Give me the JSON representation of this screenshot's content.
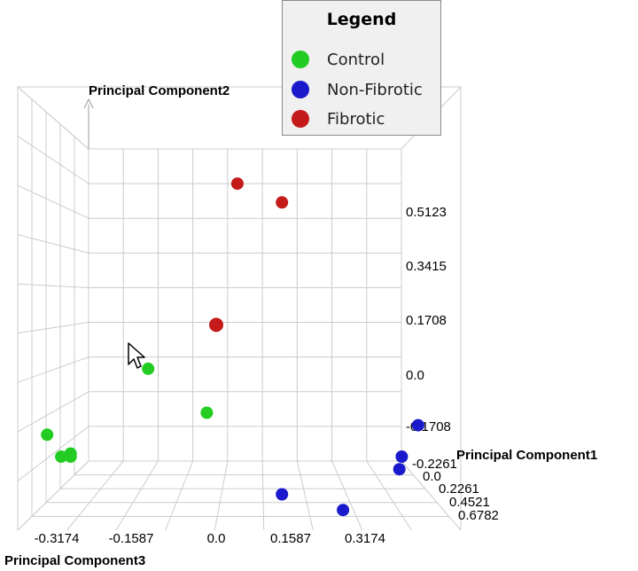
{
  "chart_data": {
    "type": "scatter",
    "title": "",
    "axes": {
      "x": {
        "label": "Principal Component3",
        "ticks": [
          "-0.3174",
          "-0.1587",
          "0.0",
          "0.1587",
          "0.3174"
        ]
      },
      "y": {
        "label": "Principal Component2",
        "ticks": [
          "-0.1708",
          "0.0",
          "0.1708",
          "0.3415",
          "0.5123"
        ]
      },
      "z": {
        "label": "Principal Component1",
        "ticks": [
          "-0.2261",
          "0.0",
          "0.2261",
          "0.4521",
          "0.6782"
        ]
      }
    },
    "legend": {
      "title": "Legend",
      "placement": "top-center",
      "entries": [
        {
          "name": "Control",
          "color": "#22cc22"
        },
        {
          "name": "Non-Fibrotic",
          "color": "#1a1acc"
        },
        {
          "name": "Fibrotic",
          "color": "#c41a1a"
        }
      ]
    },
    "series": [
      {
        "name": "Control",
        "color": "#22cc22",
        "points": [
          {
            "x": -0.145,
            "y": 0.02
          },
          {
            "x": -0.02,
            "y": -0.12
          },
          {
            "x": -0.36,
            "y": -0.19
          },
          {
            "x": -0.31,
            "y": -0.25
          },
          {
            "x": -0.33,
            "y": -0.26
          },
          {
            "x": -0.31,
            "y": -0.26
          }
        ]
      },
      {
        "name": "Non-Fibrotic",
        "color": "#1a1acc",
        "points": [
          {
            "x": 0.43,
            "y": -0.16
          },
          {
            "x": 0.395,
            "y": -0.26
          },
          {
            "x": 0.39,
            "y": -0.3
          },
          {
            "x": 0.14,
            "y": -0.38
          },
          {
            "x": 0.27,
            "y": -0.43
          }
        ]
      },
      {
        "name": "Fibrotic",
        "color": "#c41a1a",
        "points": [
          {
            "x": 0.045,
            "y": 0.61
          },
          {
            "x": 0.14,
            "y": 0.55
          },
          {
            "x": 0.0,
            "y": 0.16
          }
        ]
      }
    ],
    "grid": true
  }
}
